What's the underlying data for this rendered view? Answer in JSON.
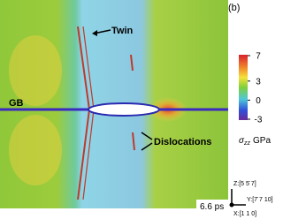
{
  "panel_label": "(b)",
  "annotations": {
    "twin": "Twin",
    "gb": "GB",
    "dislocations": "Dislocations"
  },
  "colorbar": {
    "ticks": [
      7,
      3,
      0,
      -3
    ],
    "symbol": "σ",
    "subscript": "zz",
    "unit": "GPa"
  },
  "axes": {
    "z": "Z:[5 5̄ 7]",
    "y": "Y:[7̄ 7 10]",
    "x": "X:[1 1 0]"
  },
  "time": "6.6 ps"
}
